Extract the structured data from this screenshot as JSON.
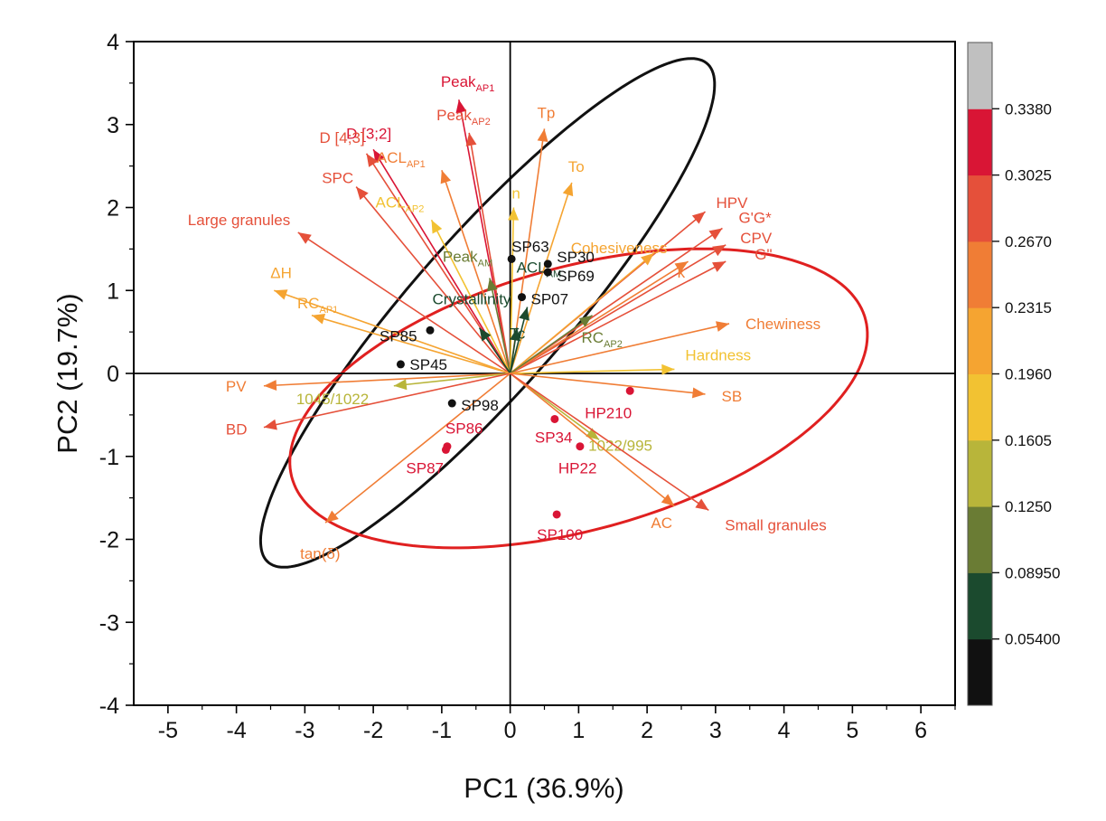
{
  "chart_data": {
    "type": "scatter",
    "subtype": "pca-biplot",
    "xlabel": "PC1 (36.9%)",
    "ylabel": "PC2 (19.7%)",
    "xlim": [
      -5.5,
      6.5
    ],
    "ylim": [
      -4,
      4
    ],
    "xticks": [
      -5,
      -4,
      -3,
      -2,
      -1,
      0,
      1,
      2,
      3,
      4,
      5,
      6
    ],
    "yticks": [
      -4,
      -3,
      -2,
      -1,
      0,
      1,
      2,
      3,
      4
    ],
    "grid": false,
    "zero_lines": true,
    "colorbar": {
      "placement": "right",
      "labels": [
        "0.05400",
        "0.08950",
        "0.1250",
        "0.1605",
        "0.1960",
        "0.2315",
        "0.2670",
        "0.3025",
        "0.3380"
      ],
      "colors": [
        "#111111",
        "#1b4a2e",
        "#6a7c34",
        "#b8b53a",
        "#f2c232",
        "#f5a431",
        "#f07d35",
        "#e5503a",
        "#d91535",
        "#c0c0c0"
      ]
    },
    "loadings": [
      {
        "label": "Peak",
        "sub": "AP1",
        "x": -0.75,
        "y": 3.3,
        "color": "#d91535"
      },
      {
        "label": "Peak",
        "sub": "AP2",
        "x": -0.6,
        "y": 2.9,
        "color": "#e5503a"
      },
      {
        "label": "Tp",
        "x": 0.5,
        "y": 2.95,
        "color": "#f07d35"
      },
      {
        "label": "To",
        "x": 0.9,
        "y": 2.3,
        "color": "#f5a431"
      },
      {
        "label": "D [3;2]",
        "x": -2.0,
        "y": 2.7,
        "color": "#d91535"
      },
      {
        "label": "D [4;3]",
        "x": -2.1,
        "y": 2.65,
        "color": "#e5503a"
      },
      {
        "label": "ACL",
        "sub": "AP1",
        "x": -1.0,
        "y": 2.45,
        "color": "#f07d35"
      },
      {
        "label": "SPC",
        "x": -2.25,
        "y": 2.25,
        "color": "#e5503a"
      },
      {
        "label": "ACL",
        "sub": "AP2",
        "x": -1.15,
        "y": 1.85,
        "color": "#f2c232"
      },
      {
        "label": "n",
        "x": 0.05,
        "y": 2.0,
        "color": "#f2c232"
      },
      {
        "label": "Large granules",
        "x": -3.1,
        "y": 1.7,
        "color": "#e5503a"
      },
      {
        "label": "Peak",
        "sub": "AM",
        "x": -0.3,
        "y": 1.15,
        "color": "#6a7c34"
      },
      {
        "label": "HPV",
        "x": 2.85,
        "y": 1.95,
        "color": "#e5503a"
      },
      {
        "label": "G'G*",
        "x": 3.1,
        "y": 1.75,
        "color": "#e5503a"
      },
      {
        "label": "CPV",
        "x": 3.15,
        "y": 1.55,
        "color": "#e5503a"
      },
      {
        "label": "G\"",
        "x": 3.15,
        "y": 1.35,
        "color": "#e5503a"
      },
      {
        "label": "k",
        "x": 2.6,
        "y": 1.35,
        "color": "#f07d35"
      },
      {
        "label": "Cohesiveness",
        "x": 2.1,
        "y": 1.45,
        "color": "#f5a431"
      },
      {
        "label": "ΔH",
        "x": -3.45,
        "y": 1.0,
        "color": "#f5a431"
      },
      {
        "label": "RC",
        "sub": "AP1",
        "x": -2.9,
        "y": 0.7,
        "color": "#f5a431"
      },
      {
        "label": "Crystallinity",
        "x": -0.45,
        "y": 0.55,
        "color": "#1b4a2e"
      },
      {
        "label": "ACL",
        "sub": "AM",
        "x": 0.25,
        "y": 0.8,
        "color": "#1b4a2e"
      },
      {
        "label": "Tc",
        "x": 0.1,
        "y": 0.55,
        "color": "#1b4a2e"
      },
      {
        "label": "RC",
        "sub": "AP2",
        "x": 1.2,
        "y": 0.7,
        "color": "#6a7c34"
      },
      {
        "label": "Chewiness",
        "x": 3.2,
        "y": 0.6,
        "color": "#f07d35"
      },
      {
        "label": "Hardness",
        "x": 2.4,
        "y": 0.05,
        "color": "#f2c232"
      },
      {
        "label": "PV",
        "x": -3.6,
        "y": -0.15,
        "color": "#f07d35"
      },
      {
        "label": "1045/1022",
        "x": -1.7,
        "y": -0.15,
        "color": "#b8b53a"
      },
      {
        "label": "SB",
        "x": 2.85,
        "y": -0.25,
        "color": "#f07d35"
      },
      {
        "label": "BD",
        "x": -3.6,
        "y": -0.65,
        "color": "#e5503a"
      },
      {
        "label": "1022/995",
        "x": 1.3,
        "y": -0.8,
        "color": "#b8b53a"
      },
      {
        "label": "AC",
        "x": 2.4,
        "y": -1.6,
        "color": "#f07d35"
      },
      {
        "label": "Small granules",
        "x": 2.9,
        "y": -1.65,
        "color": "#e5503a"
      },
      {
        "label": "tan(δ)",
        "x": -2.7,
        "y": -1.8,
        "color": "#f07d35"
      }
    ],
    "scores": [
      {
        "label": "SP63",
        "x": 0.02,
        "y": 1.38,
        "color": "#111111"
      },
      {
        "label": "SP30",
        "x": 0.55,
        "y": 1.32,
        "color": "#111111"
      },
      {
        "label": "SP69",
        "x": 0.55,
        "y": 1.22,
        "color": "#111111"
      },
      {
        "label": "SP07",
        "x": 0.17,
        "y": 0.92,
        "color": "#111111"
      },
      {
        "label": "SP85",
        "x": -1.17,
        "y": 0.52,
        "color": "#111111"
      },
      {
        "label": "SP45",
        "x": -1.6,
        "y": 0.11,
        "color": "#111111"
      },
      {
        "label": "SP98",
        "x": -0.85,
        "y": -0.36,
        "color": "#111111"
      },
      {
        "label": "HP210",
        "x": 1.75,
        "y": -0.21,
        "color": "#d91535"
      },
      {
        "label": "SP34",
        "x": 0.65,
        "y": -0.55,
        "color": "#d91535"
      },
      {
        "label": "HP22",
        "x": 1.02,
        "y": -0.88,
        "color": "#d91535"
      },
      {
        "label": "SP86",
        "x": -0.92,
        "y": -0.88,
        "color": "#d91535"
      },
      {
        "label": "SP87",
        "x": -0.94,
        "y": -0.92,
        "color": "#d91535"
      },
      {
        "label": "SP100",
        "x": 0.68,
        "y": -1.7,
        "color": "#d91535"
      }
    ],
    "ellipses": [
      {
        "cx": -0.33,
        "cy": 0.73,
        "rx": 4.4,
        "ry": 1.02,
        "angle_deg": 42.5,
        "color": "#111111"
      },
      {
        "cx": 1.0,
        "cy": -0.3,
        "rx": 4.3,
        "ry": 1.6,
        "angle_deg": 12,
        "color": "#e02020"
      }
    ]
  }
}
